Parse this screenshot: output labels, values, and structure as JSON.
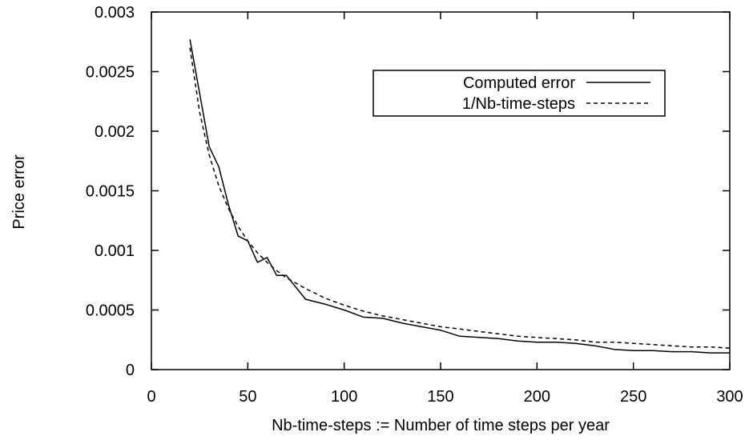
{
  "chart_data": {
    "type": "line",
    "xlabel": "Nb-time-steps := Number of time steps per year",
    "ylabel": "Price error",
    "xlim": [
      0,
      300
    ],
    "ylim": [
      0,
      0.003
    ],
    "xticks": [
      0,
      50,
      100,
      150,
      200,
      250,
      300
    ],
    "xtick_labels": [
      "0",
      "50",
      "100",
      "150",
      "200",
      "250",
      "300"
    ],
    "yticks": [
      0,
      0.0005,
      0.001,
      0.0015,
      0.002,
      0.0025,
      0.003
    ],
    "ytick_labels": [
      "0",
      "0.0005",
      "0.001",
      "0.0015",
      "0.002",
      "0.0025",
      "0.003"
    ],
    "grid": false,
    "legend_position": "top-right",
    "series": [
      {
        "name": "Computed error",
        "style": "solid",
        "color": "#000000",
        "x": [
          20,
          30,
          35,
          40,
          45,
          50,
          55,
          60,
          65,
          70,
          80,
          90,
          100,
          110,
          120,
          130,
          140,
          150,
          160,
          170,
          180,
          190,
          200,
          210,
          220,
          230,
          240,
          250,
          260,
          270,
          280,
          290,
          300
        ],
        "y": [
          0.00277,
          0.00187,
          0.0017,
          0.00138,
          0.00112,
          0.00108,
          0.0009,
          0.00094,
          0.00079,
          0.00079,
          0.00059,
          0.00055,
          0.0005,
          0.00044,
          0.00043,
          0.00039,
          0.00036,
          0.00033,
          0.00028,
          0.00027,
          0.00026,
          0.00024,
          0.00023,
          0.00023,
          0.00022,
          0.0002,
          0.00017,
          0.00016,
          0.00016,
          0.00015,
          0.00015,
          0.00014,
          0.00014
        ]
      },
      {
        "name": "1/Nb-time-steps",
        "style": "dashed",
        "color": "#000000",
        "x": [
          20,
          25,
          30,
          35,
          40,
          45,
          50,
          55,
          60,
          65,
          70,
          80,
          90,
          100,
          110,
          120,
          130,
          140,
          150,
          160,
          170,
          180,
          190,
          200,
          210,
          220,
          230,
          240,
          250,
          260,
          270,
          280,
          290,
          300
        ],
        "y": [
          0.0027,
          0.00216,
          0.0018,
          0.00154,
          0.00135,
          0.0012,
          0.00108,
          0.00098,
          0.0009,
          0.00083,
          0.00077,
          0.00068,
          0.0006,
          0.00054,
          0.00049,
          0.00045,
          0.00042,
          0.00039,
          0.00036,
          0.00034,
          0.00032,
          0.0003,
          0.00028,
          0.00027,
          0.00026,
          0.00025,
          0.00023,
          0.00023,
          0.00022,
          0.00021,
          0.0002,
          0.00019,
          0.00019,
          0.00018
        ]
      }
    ]
  }
}
